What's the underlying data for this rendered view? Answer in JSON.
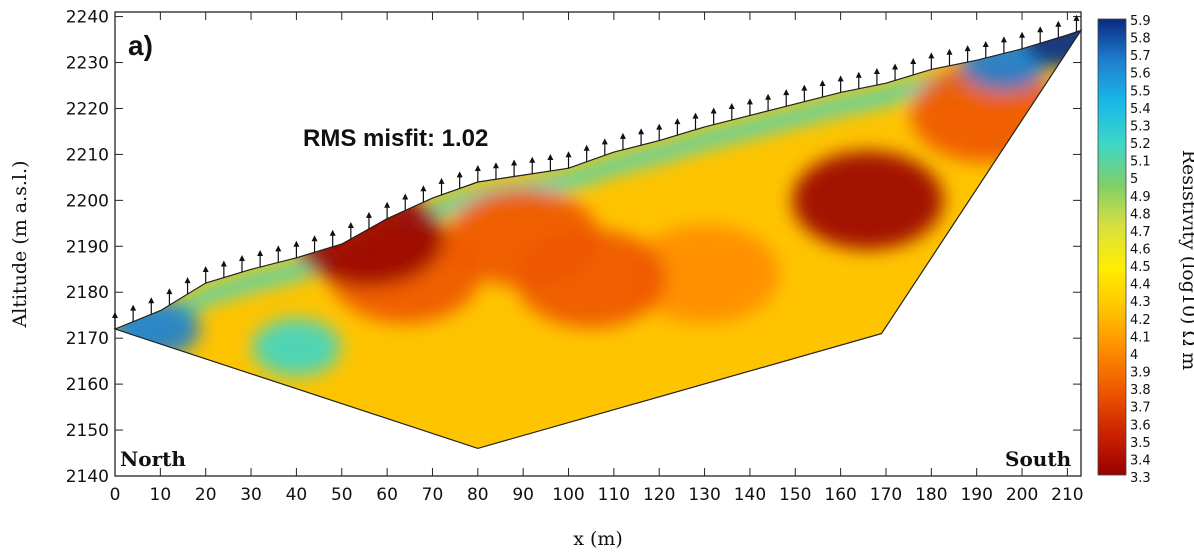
{
  "chart_data": {
    "type": "heatmap",
    "panel_label": "a)",
    "annotation": "RMS misfit: 1.02",
    "xlabel": "x (m)",
    "ylabel": "Altitude (m a.s.l.)",
    "xlim": [
      0,
      213
    ],
    "ylim": [
      2140,
      2241
    ],
    "x_ticks": [
      0,
      10,
      20,
      30,
      40,
      50,
      60,
      70,
      80,
      90,
      100,
      110,
      120,
      130,
      140,
      150,
      160,
      170,
      180,
      190,
      200,
      210
    ],
    "y_ticks": [
      2140,
      2150,
      2160,
      2170,
      2180,
      2190,
      2200,
      2210,
      2220,
      2230,
      2240
    ],
    "left_label": "North",
    "right_label": "South",
    "colorbar": {
      "title": "Resistivity (log10) Ω m",
      "ticks": [
        "5.9",
        "5.8",
        "5.7",
        "5.6",
        "5.5",
        "5.4",
        "5.3",
        "5.2",
        "5.1",
        "5",
        "4.9",
        "4.8",
        "4.7",
        "4.6",
        "4.5",
        "4.4",
        "4.3",
        "4.2",
        "4.1",
        "4",
        "3.9",
        "3.8",
        "3.7",
        "3.6",
        "3.5",
        "3.4",
        "3.3"
      ],
      "min": 3.3,
      "max": 5.9,
      "colors": [
        "#990000",
        "#cc2200",
        "#ee5500",
        "#ff8c00",
        "#ffc400",
        "#ffee00",
        "#d8e040",
        "#7fcf6a",
        "#3ed6c8",
        "#17b8e8",
        "#1f7fd0",
        "#0a2a80"
      ]
    },
    "surface_profile": [
      [
        0,
        2172
      ],
      [
        10,
        2176
      ],
      [
        20,
        2182
      ],
      [
        30,
        2185
      ],
      [
        40,
        2187.5
      ],
      [
        50,
        2190.5
      ],
      [
        60,
        2196
      ],
      [
        70,
        2200.5
      ],
      [
        80,
        2204
      ],
      [
        90,
        2205.5
      ],
      [
        100,
        2207
      ],
      [
        110,
        2210.5
      ],
      [
        120,
        2213
      ],
      [
        130,
        2216
      ],
      [
        140,
        2218.5
      ],
      [
        150,
        2221
      ],
      [
        160,
        2223.5
      ],
      [
        170,
        2225.5
      ],
      [
        180,
        2228.5
      ],
      [
        190,
        2230.5
      ],
      [
        200,
        2233
      ],
      [
        210,
        2236
      ],
      [
        213,
        2237
      ]
    ],
    "model_bottom": [
      [
        0,
        2172
      ],
      [
        80,
        2146
      ],
      [
        169,
        2171
      ],
      [
        213,
        2237
      ]
    ],
    "electrodes_x": [
      0,
      4,
      8,
      12,
      16,
      20,
      24,
      28,
      32,
      36,
      40,
      44,
      48,
      52,
      56,
      60,
      64,
      68,
      72,
      76,
      80,
      84,
      88,
      92,
      96,
      100,
      104,
      108,
      112,
      116,
      120,
      124,
      128,
      132,
      136,
      140,
      144,
      148,
      152,
      156,
      160,
      164,
      168,
      172,
      176,
      180,
      184,
      188,
      192,
      196,
      200,
      204,
      208,
      212
    ],
    "anomalies": [
      {
        "x": 166,
        "y": 2200,
        "value": 3.35
      },
      {
        "x": 192,
        "y": 2219,
        "value": 3.7
      },
      {
        "x": 130,
        "y": 2184,
        "value": 3.9
      },
      {
        "x": 105,
        "y": 2183,
        "value": 3.85
      },
      {
        "x": 90,
        "y": 2192,
        "value": 3.7
      },
      {
        "x": 64,
        "y": 2184,
        "value": 3.7
      },
      {
        "x": 56,
        "y": 2192,
        "value": 3.4
      },
      {
        "x": 40,
        "y": 2168,
        "value": 5.1
      },
      {
        "x": 9,
        "y": 2172,
        "value": 5.7
      },
      {
        "x": 196,
        "y": 2230,
        "value": 5.6
      },
      {
        "x": 210,
        "y": 2235,
        "value": 5.8
      }
    ]
  }
}
